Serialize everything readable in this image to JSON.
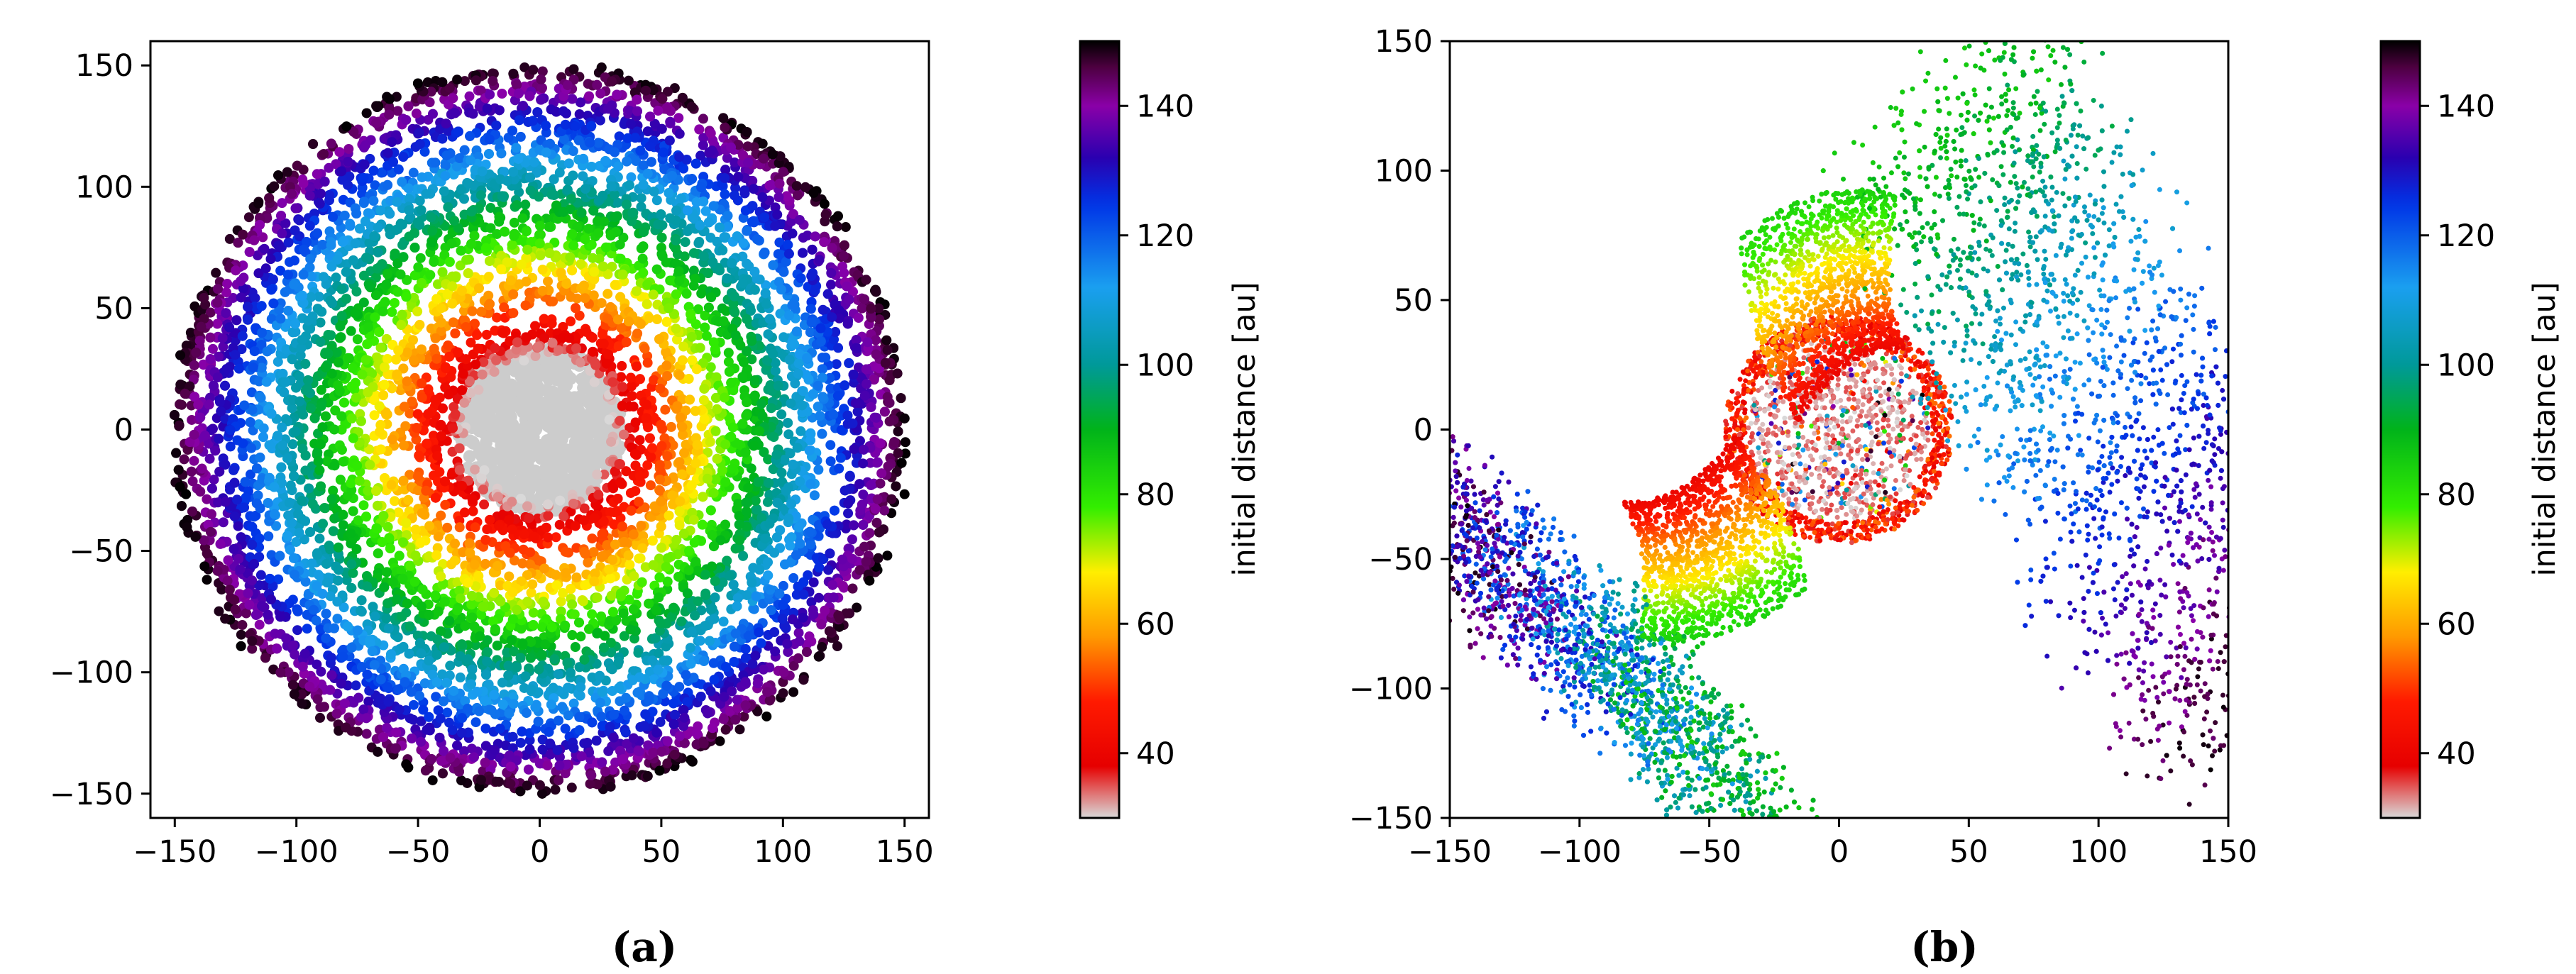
{
  "chart_data": [
    {
      "type": "scatter",
      "panel": "(a)",
      "description_type": "particle disk colored by initial distance",
      "xlim": [
        -160,
        160
      ],
      "ylim": [
        -160,
        160
      ],
      "x_ticks": [
        -150,
        -100,
        -50,
        0,
        50,
        100,
        150
      ],
      "y_ticks": [
        -150,
        -100,
        -50,
        0,
        50,
        100,
        150
      ],
      "x_tick_labels": [
        "−150",
        "−100",
        "−50",
        "0",
        "50",
        "100",
        "150"
      ],
      "y_tick_labels": [
        "−150",
        "−100",
        "−50",
        "0",
        "50",
        "100",
        "150"
      ],
      "disk": {
        "inner_radius": 30,
        "outer_radius": 150,
        "inner_core_color": "#cccccc"
      },
      "colorbar": {
        "label": "initial distance [au]",
        "range": [
          30,
          150
        ],
        "ticks": [
          40,
          60,
          80,
          100,
          120,
          140
        ],
        "tick_labels": [
          "40",
          "60",
          "80",
          "100",
          "120",
          "140"
        ]
      },
      "grid": false,
      "caption": "(a)"
    },
    {
      "type": "scatter",
      "panel": "(b)",
      "description_type": "particles after perturbation colored by initial distance",
      "xlim": [
        -150,
        150
      ],
      "ylim": [
        -150,
        150
      ],
      "x_ticks": [
        -150,
        -100,
        -50,
        0,
        50,
        100,
        150
      ],
      "y_ticks": [
        -150,
        -100,
        -50,
        0,
        50,
        100,
        150
      ],
      "x_tick_labels": [
        "−150",
        "−100",
        "−50",
        "0",
        "50",
        "100",
        "150"
      ],
      "y_tick_labels": [
        "−150",
        "−100",
        "−50",
        "0",
        "50",
        "100",
        "150"
      ],
      "colorbar": {
        "label": "initial distance [au]",
        "range": [
          30,
          150
        ],
        "ticks": [
          40,
          60,
          80,
          100,
          120,
          140
        ],
        "tick_labels": [
          "40",
          "60",
          "80",
          "100",
          "120",
          "140"
        ]
      },
      "grid": false,
      "caption": "(b)"
    }
  ],
  "colormap": {
    "stops": [
      [
        30,
        "#d9d9d9"
      ],
      [
        38,
        "#e60000"
      ],
      [
        48,
        "#ff1a00"
      ],
      [
        58,
        "#ff9900"
      ],
      [
        68,
        "#ffee00"
      ],
      [
        78,
        "#33ee00"
      ],
      [
        90,
        "#00b31a"
      ],
      [
        100,
        "#009999"
      ],
      [
        112,
        "#1a9ff0"
      ],
      [
        125,
        "#0033e6"
      ],
      [
        132,
        "#2a00b0"
      ],
      [
        140,
        "#8a00a8"
      ],
      [
        146,
        "#4d0040"
      ],
      [
        150,
        "#000000"
      ]
    ]
  }
}
